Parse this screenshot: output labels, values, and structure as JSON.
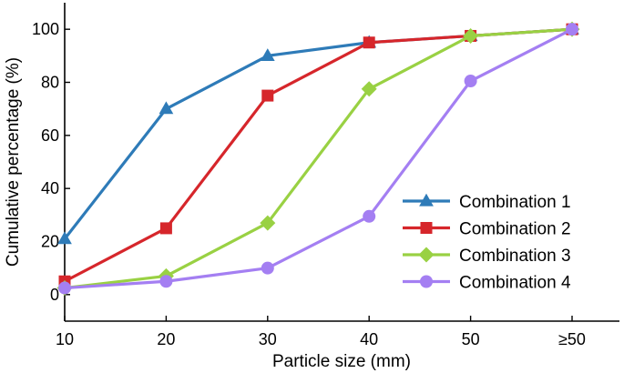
{
  "chart_data": {
    "type": "line",
    "title": "",
    "xlabel": "Particle size (mm)",
    "ylabel": "Cumulative percentage (%)",
    "categories": [
      "10",
      "20",
      "30",
      "40",
      "50",
      "≥50"
    ],
    "ylim": [
      -10,
      110
    ],
    "yticks": [
      0,
      20,
      40,
      60,
      80,
      100
    ],
    "legend_position": "bottom-right",
    "grid": false,
    "series": [
      {
        "name": "Combination 1",
        "color": "#2e7bb8",
        "marker": "triangle",
        "values": [
          21,
          70,
          90,
          95,
          97.5,
          100
        ]
      },
      {
        "name": "Combination 2",
        "color": "#d6262b",
        "marker": "square",
        "values": [
          5,
          25,
          75,
          95,
          97.5,
          100
        ]
      },
      {
        "name": "Combination 3",
        "color": "#99d143",
        "marker": "diamond",
        "values": [
          2.5,
          7,
          27,
          77.5,
          97.5,
          100
        ]
      },
      {
        "name": "Combination 4",
        "color": "#a47ff2",
        "marker": "circle",
        "values": [
          2.5,
          5,
          10,
          29.5,
          80.5,
          100
        ]
      }
    ]
  }
}
